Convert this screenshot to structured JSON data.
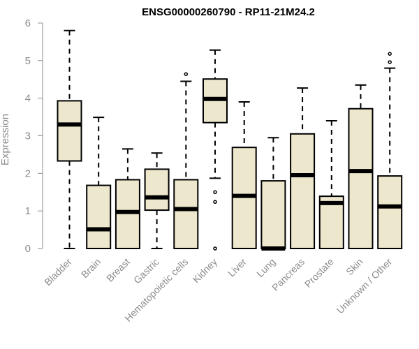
{
  "chart_data": {
    "type": "boxplot",
    "title": "ENSG00000260790 - RP11-21M24.2",
    "xlabel": "",
    "ylabel": "Expression",
    "ylim": [
      0,
      6
    ],
    "yticks": [
      0,
      1,
      2,
      3,
      4,
      5,
      6
    ],
    "grid": false,
    "colors": {
      "box_fill": "#ede7cd",
      "stroke": "#000000",
      "axis_text": "#8c8c8c"
    },
    "categories": [
      "Bladder",
      "Brain",
      "Breast",
      "Gastric",
      "Hematopoietic cells",
      "Kidney",
      "Liver",
      "Lung",
      "Pancreas",
      "Prostate",
      "Skin",
      "Unknown / Other"
    ],
    "boxes": [
      {
        "whisker_low": 0,
        "q1": 2.33,
        "median": 3.3,
        "q3": 3.93,
        "whisker_high": 5.8,
        "outliers": []
      },
      {
        "whisker_low": 0,
        "q1": 0,
        "median": 0.51,
        "q3": 1.68,
        "whisker_high": 3.49,
        "outliers": []
      },
      {
        "whisker_low": 0,
        "q1": 0,
        "median": 0.97,
        "q3": 1.83,
        "whisker_high": 2.65,
        "outliers": []
      },
      {
        "whisker_low": 0,
        "q1": 1.02,
        "median": 1.36,
        "q3": 2.11,
        "whisker_high": 2.54,
        "outliers": []
      },
      {
        "whisker_low": 0,
        "q1": 0,
        "median": 1.05,
        "q3": 1.83,
        "whisker_high": 4.45,
        "outliers": [
          4.64
        ]
      },
      {
        "whisker_low": 1.87,
        "q1": 3.35,
        "median": 3.98,
        "q3": 4.51,
        "whisker_high": 5.28,
        "outliers": [
          1.5,
          1.24,
          0.0
        ]
      },
      {
        "whisker_low": 0,
        "q1": 0,
        "median": 1.4,
        "q3": 2.69,
        "whisker_high": 3.9,
        "outliers": []
      },
      {
        "whisker_low": 0,
        "q1": 0,
        "median": 0,
        "q3": 1.8,
        "whisker_high": 2.95,
        "outliers": []
      },
      {
        "whisker_low": 0,
        "q1": 0,
        "median": 1.95,
        "q3": 3.05,
        "whisker_high": 4.27,
        "outliers": []
      },
      {
        "whisker_low": 0,
        "q1": 0,
        "median": 1.21,
        "q3": 1.39,
        "whisker_high": 3.4,
        "outliers": []
      },
      {
        "whisker_low": 0,
        "q1": 0,
        "median": 2.06,
        "q3": 3.72,
        "whisker_high": 4.35,
        "outliers": []
      },
      {
        "whisker_low": 0,
        "q1": 0,
        "median": 1.12,
        "q3": 1.93,
        "whisker_high": 4.8,
        "outliers": [
          4.96,
          5.18
        ]
      }
    ]
  }
}
